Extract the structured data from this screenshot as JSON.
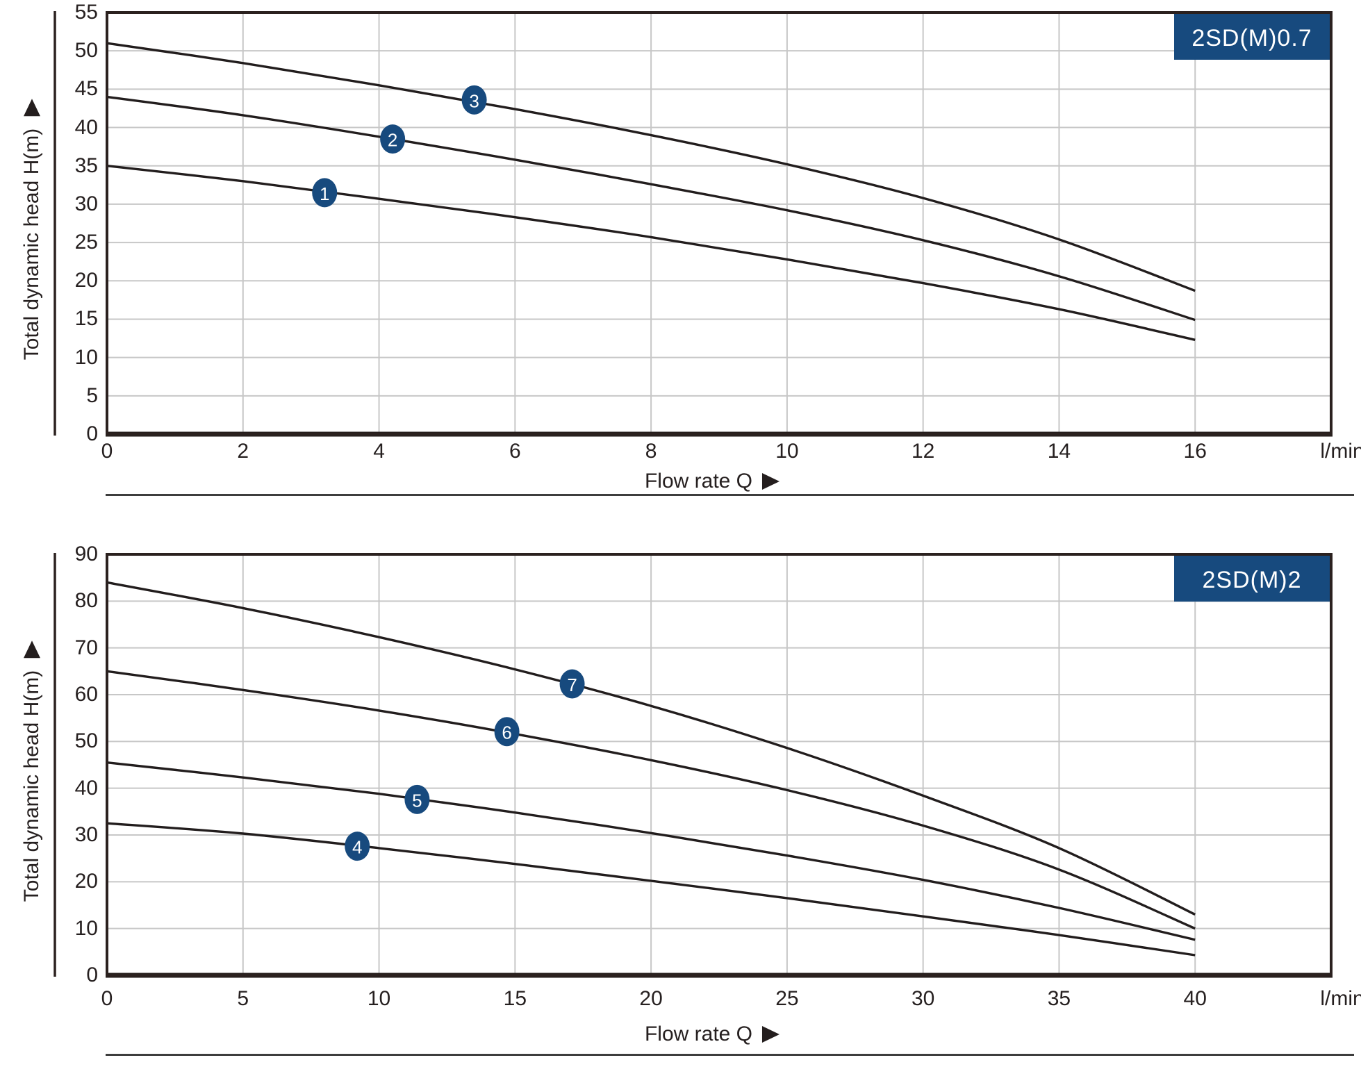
{
  "page": {
    "description": "Pump performance curve sheet with two head-vs-flow charts"
  },
  "colors": {
    "accent_navy": "#174a7e",
    "curve": "#221d1d",
    "grid": "#c7c7c7",
    "plot_border": "#2b211f",
    "axis_heavy": "#251e1c",
    "text": "#262020",
    "separator": "#3d3d3d",
    "marker_text": "#ffffff"
  },
  "icons": {
    "y_axis_arrow": "up-triangle",
    "x_axis_arrow": "right-triangle"
  },
  "chart_data": [
    {
      "id": "pump-2SDM0.7",
      "type": "line",
      "badge": "2SD(M)0.7",
      "ylabel": "Total dynamic head H(m)",
      "xlabel": "Flow rate Q",
      "x_unit_label": "l/min",
      "xlim": [
        0,
        18
      ],
      "ylim": [
        0,
        55
      ],
      "x_ticks": [
        0,
        2,
        4,
        6,
        8,
        10,
        12,
        14,
        16
      ],
      "y_ticks": [
        0,
        5,
        10,
        15,
        20,
        25,
        30,
        35,
        40,
        45,
        50,
        55
      ],
      "grid": true,
      "legend_position": "none",
      "series": [
        {
          "name": "1",
          "points": [
            [
              0,
              35
            ],
            [
              2,
              33
            ],
            [
              4,
              30.7
            ],
            [
              6,
              28.3
            ],
            [
              8,
              25.7
            ],
            [
              10,
              22.8
            ],
            [
              12,
              19.7
            ],
            [
              14,
              16.3
            ],
            [
              16,
              12.3
            ]
          ]
        },
        {
          "name": "2",
          "points": [
            [
              0,
              44
            ],
            [
              2,
              41.6
            ],
            [
              4,
              38.8
            ],
            [
              6,
              35.8
            ],
            [
              8,
              32.6
            ],
            [
              10,
              29.2
            ],
            [
              12,
              25.3
            ],
            [
              14,
              20.6
            ],
            [
              16,
              14.9
            ]
          ]
        },
        {
          "name": "3",
          "points": [
            [
              0,
              51
            ],
            [
              2,
              48.4
            ],
            [
              4,
              45.5
            ],
            [
              6,
              42.4
            ],
            [
              8,
              39
            ],
            [
              10,
              35.2
            ],
            [
              12,
              30.8
            ],
            [
              14,
              25.4
            ],
            [
              16,
              18.7
            ]
          ]
        }
      ],
      "markers": [
        {
          "label": "1",
          "x": 3.2,
          "y": 31.5
        },
        {
          "label": "2",
          "x": 4.2,
          "y": 38.5
        },
        {
          "label": "3",
          "x": 5.4,
          "y": 43.6
        }
      ]
    },
    {
      "id": "pump-2SDM2",
      "type": "line",
      "badge": "2SD(M)2",
      "ylabel": "Total dynamic head H(m)",
      "xlabel": "Flow rate Q",
      "x_unit_label": "l/min",
      "xlim": [
        0,
        45
      ],
      "ylim": [
        0,
        90
      ],
      "x_ticks": [
        0,
        5,
        10,
        15,
        20,
        25,
        30,
        35,
        40
      ],
      "y_ticks": [
        0,
        10,
        20,
        30,
        40,
        50,
        60,
        70,
        80,
        90
      ],
      "grid": true,
      "legend_position": "none",
      "series": [
        {
          "name": "4",
          "points": [
            [
              0,
              32.5
            ],
            [
              5,
              30.3
            ],
            [
              10,
              27.2
            ],
            [
              15,
              23.8
            ],
            [
              20,
              20.2
            ],
            [
              25,
              16.5
            ],
            [
              30,
              12.6
            ],
            [
              35,
              8.6
            ],
            [
              40,
              4.3
            ]
          ]
        },
        {
          "name": "5",
          "points": [
            [
              0,
              45.5
            ],
            [
              5,
              42.3
            ],
            [
              10,
              38.8
            ],
            [
              15,
              34.8
            ],
            [
              20,
              30.4
            ],
            [
              25,
              25.6
            ],
            [
              30,
              20.4
            ],
            [
              35,
              14.4
            ],
            [
              40,
              7.6
            ]
          ]
        },
        {
          "name": "6",
          "points": [
            [
              0,
              65
            ],
            [
              5,
              61
            ],
            [
              10,
              56.6
            ],
            [
              15,
              51.6
            ],
            [
              20,
              46
            ],
            [
              25,
              39.6
            ],
            [
              30,
              32
            ],
            [
              35,
              22.6
            ],
            [
              40,
              10
            ]
          ]
        },
        {
          "name": "7",
          "points": [
            [
              0,
              84
            ],
            [
              5,
              78.5
            ],
            [
              10,
              72.3
            ],
            [
              15,
              65.4
            ],
            [
              20,
              57.6
            ],
            [
              25,
              48.6
            ],
            [
              30,
              38.4
            ],
            [
              35,
              27.2
            ],
            [
              40,
              13
            ]
          ]
        }
      ],
      "markers": [
        {
          "label": "4",
          "x": 9.2,
          "y": 27.6
        },
        {
          "label": "5",
          "x": 11.4,
          "y": 37.6
        },
        {
          "label": "6",
          "x": 14.7,
          "y": 52.1
        },
        {
          "label": "7",
          "x": 17.1,
          "y": 62.3
        }
      ]
    }
  ]
}
